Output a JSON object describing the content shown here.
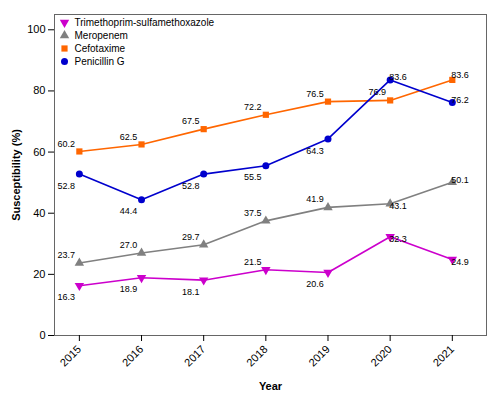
{
  "chart_data": {
    "type": "line",
    "x": [
      2015,
      2016,
      2017,
      2018,
      2019,
      2020,
      2021
    ],
    "xlabel": "Year",
    "ylabel": "Susceptibility (%)",
    "xlim": [
      2014.6,
      2021.55
    ],
    "xticks": [
      2015,
      2016,
      2017,
      2018,
      2019,
      2020,
      2021
    ],
    "ylim": [
      0,
      105
    ],
    "yticks": [
      0,
      20,
      40,
      60,
      80,
      100
    ],
    "series": [
      {
        "name": "Trimethoprim-sulfamethoxazole",
        "color": "#cc00cc",
        "marker": "triangle-down",
        "values": [
          16.3,
          18.9,
          18.1,
          21.5,
          20.6,
          32.3,
          24.9
        ]
      },
      {
        "name": "Meropenem",
        "color": "#808080",
        "marker": "triangle-up",
        "values": [
          23.7,
          27.0,
          29.7,
          37.5,
          41.9,
          43.1,
          50.1
        ],
        "value_labels": [
          "23.7",
          "27.0",
          "29.7",
          "37.5",
          "41.9",
          "43.1",
          "50.1"
        ]
      },
      {
        "name": "Cefotaxime",
        "color": "#ff6600",
        "marker": "square",
        "values": [
          60.2,
          62.5,
          67.5,
          72.2,
          76.5,
          76.9,
          83.6
        ]
      },
      {
        "name": "Penicillin G",
        "color": "#0000cd",
        "marker": "circle",
        "values": [
          52.8,
          44.4,
          52.8,
          55.5,
          64.3,
          83.6,
          76.2
        ]
      }
    ],
    "data_labels": true,
    "legend": "upper left",
    "grid": false
  }
}
